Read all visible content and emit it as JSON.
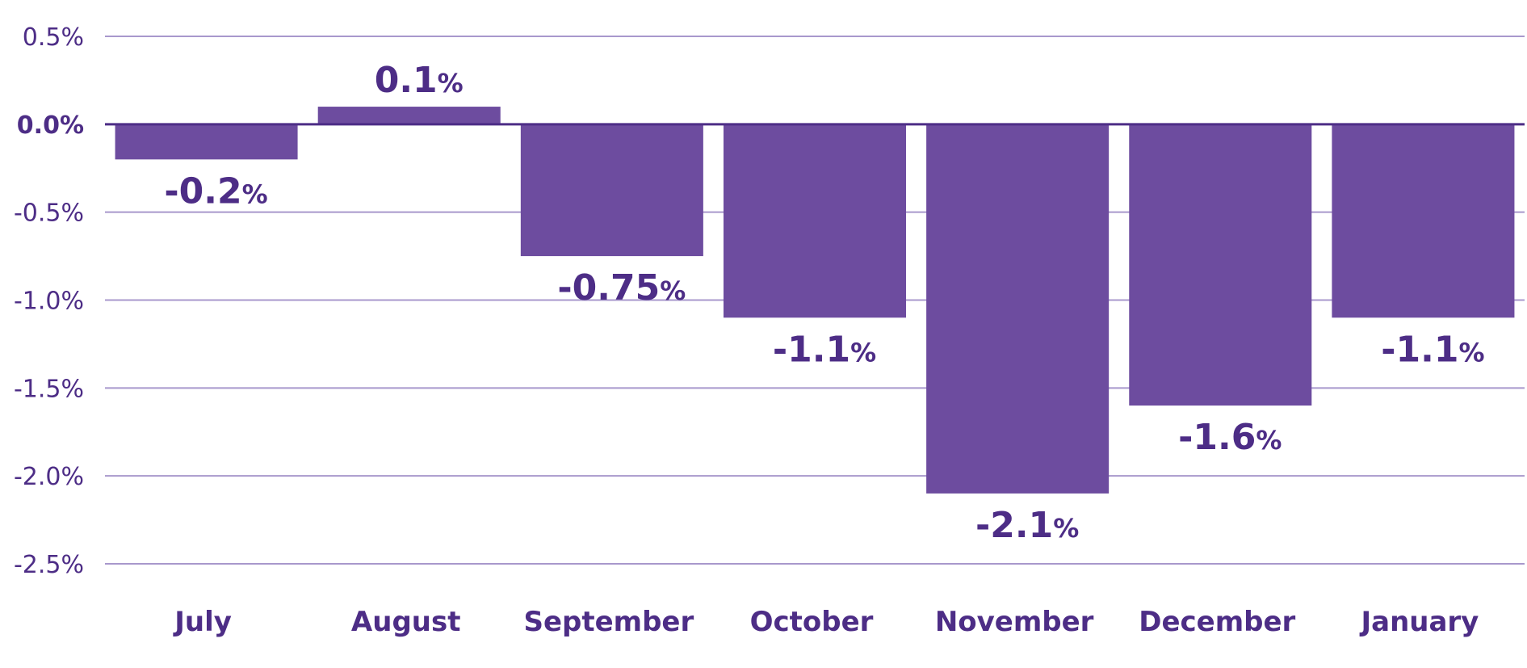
{
  "chart_data": {
    "type": "bar",
    "categories": [
      "July",
      "August",
      "September",
      "October",
      "November",
      "December",
      "January"
    ],
    "values": [
      -0.2,
      0.1,
      -0.75,
      -1.1,
      -2.1,
      -1.6,
      -1.1
    ],
    "data_labels": [
      {
        "number": "-0.2",
        "unit": "%"
      },
      {
        "number": "0.1",
        "unit": "%"
      },
      {
        "number": "-0.75",
        "unit": "%"
      },
      {
        "number": "-1.1",
        "unit": "%"
      },
      {
        "number": "-2.1",
        "unit": "%"
      },
      {
        "number": "-1.6",
        "unit": "%"
      },
      {
        "number": "-1.1",
        "unit": "%"
      }
    ],
    "y_ticks": [
      0.5,
      0.0,
      -0.5,
      -1.0,
      -1.5,
      -2.0,
      -2.5
    ],
    "y_tick_labels": [
      "0.5%",
      "0.0%",
      "-0.5%",
      "-1.0%",
      "-1.5%",
      "-2.0%",
      "-2.5%"
    ],
    "ylim": [
      -2.5,
      0.5
    ],
    "grid": true,
    "legend": "none",
    "colors": {
      "bar": "#6d4c9f",
      "text": "#4d2d86",
      "grid": "#a898cc",
      "zero_line": "#4d2d86"
    }
  }
}
